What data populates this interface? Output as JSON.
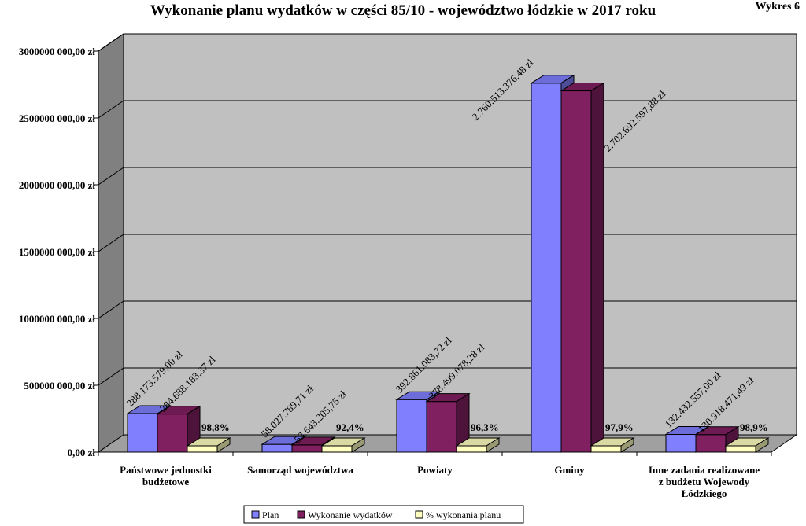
{
  "chart_data": {
    "type": "bar",
    "title": "Wykonanie  planu  wydatków  w  części  85/10 - województwo  łódzkie  w  2017 roku",
    "tag": "Wykres 6",
    "categories": [
      [
        "Państwowe jednostki",
        "budżetowe"
      ],
      [
        "Samorząd województwa"
      ],
      [
        "Powiaty"
      ],
      [
        "Gminy"
      ],
      [
        "Inne zadania realizowane",
        "z budżetu Wojewody",
        "Łódzkiego"
      ]
    ],
    "series": [
      {
        "name": "Plan",
        "color": "#8080ff",
        "values": [
          288173579.0,
          58027789.71,
          392861083.72,
          2760513376.48,
          132432557.0
        ],
        "labels": [
          "288.173.579,00 zł",
          "58.027.789,71 zł",
          "392.861.083,72 zł",
          "2.760.513.376,48 zł",
          "132.432.557,00 zł"
        ]
      },
      {
        "name": "Wykonanie wydatków",
        "color": "#802060",
        "values": [
          284688183.37,
          53643205.75,
          378499078.28,
          2702692597.88,
          130918471.49
        ],
        "labels": [
          "284.688.183,37 zł",
          "53.643.205,75 zł",
          "378.499.078,28 zł",
          "2.702.692.597,88 zł",
          "130.918.471,49 zł"
        ]
      },
      {
        "name": "% wykonania planu",
        "color": "#ffffc0",
        "values": [
          98.8,
          92.4,
          96.3,
          97.9,
          98.9
        ],
        "labels": [
          "98,8%",
          "92,4%",
          "96,3%",
          "97,9%",
          "98,9%"
        ]
      }
    ],
    "yticks": [
      "0,00 zł",
      "500000 000,00 zł",
      "1000000 000,00 zł",
      "1500000 000,00 zł",
      "2000000 000,00 zł",
      "2500000 000,00 zł",
      "3000000 000,00 zł"
    ],
    "ylim": [
      0,
      3000000000
    ],
    "grid": true,
    "legend": "bottom"
  },
  "colors": {
    "wall": "#c0c0c0",
    "side_wall": "#808080",
    "floor": "#a0a0a0"
  }
}
